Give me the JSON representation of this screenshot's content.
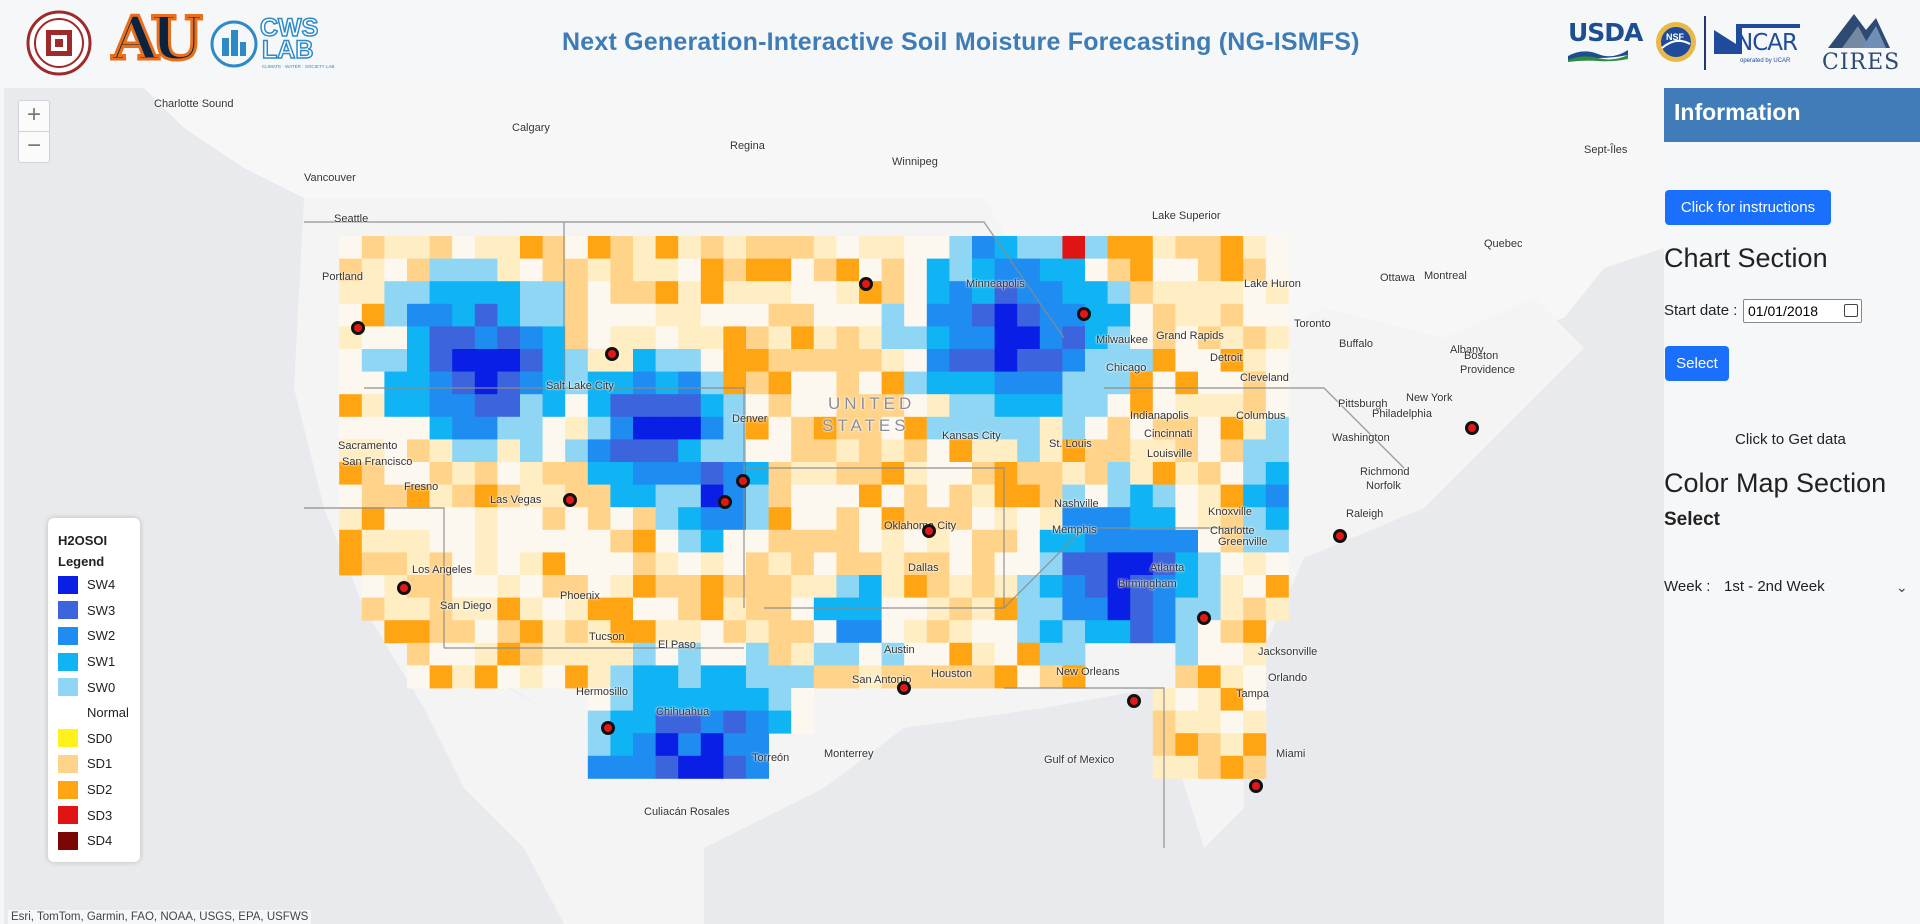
{
  "header": {
    "title": "Next Generation-Interactive Soil Moisture Forecasting (NG-ISMFS)",
    "logos": {
      "cwslab_top": "CWS",
      "cwslab_bottom": "LAB",
      "cwslab_tag": "CLIMATE · WATER · SOCIETY LAB",
      "au": "AU",
      "usda": "USDA",
      "nsf": "NSF",
      "ncar": "NCAR",
      "ncar_tag": "operated by UCAR",
      "cires": "CIRES"
    }
  },
  "map": {
    "zoom_in": "+",
    "zoom_out": "−",
    "attribution": "Esri, TomTom, Garmin, FAO, NOAA, USGS, EPA, USFWS",
    "labels": [
      "Charlotte Sound",
      "Calgary",
      "Regina",
      "Winnipeg",
      "Vancouver",
      "Sept-Îles",
      "Seattle",
      "Portland",
      "Quebec",
      "Montreal",
      "Ottawa",
      "Toronto",
      "Buffalo",
      "Albany",
      "Boston",
      "Providence",
      "Lake Superior",
      "Lake Huron",
      "Minneapolis",
      "Milwaukee",
      "Grand Rapids",
      "Detroit",
      "Chicago",
      "Cleveland",
      "Pittsburgh",
      "New York",
      "Philadelphia",
      "Washington",
      "Columbus",
      "Indianapolis",
      "Cincinnati",
      "Louisville",
      "St. Louis",
      "Kansas City",
      "Richmond",
      "Norfolk",
      "Nashville",
      "Knoxville",
      "Charlotte",
      "Greenville",
      "Raleigh",
      "Memphis",
      "Atlanta",
      "Birmingham",
      "Salt Lake City",
      "Denver",
      "UNITED",
      "STATES",
      "Sacramento",
      "San Francisco",
      "Fresno",
      "Las Vegas",
      "Oklahoma City",
      "Dallas",
      "Los Angeles",
      "Phoenix",
      "San Diego",
      "Tucson",
      "El Paso",
      "Austin",
      "Houston",
      "San Antonio",
      "New Orleans",
      "Jacksonville",
      "Orlando",
      "Tampa",
      "Miami",
      "Hermosillo",
      "Chihuahua",
      "Torreón",
      "Monterrey",
      "Culiacán Rosales",
      "Gulf of Mexico"
    ]
  },
  "legend": {
    "title": "H2OSOI",
    "subtitle": "Legend",
    "items": [
      {
        "label": "SW4",
        "color": "#0a1fe6"
      },
      {
        "label": "SW3",
        "color": "#3c64dc"
      },
      {
        "label": "SW2",
        "color": "#1e8cf0"
      },
      {
        "label": "SW1",
        "color": "#10b4f4"
      },
      {
        "label": "SW0",
        "color": "#8ed6f4"
      },
      {
        "label": "Normal",
        "color": "#ffffff"
      },
      {
        "label": "SD0",
        "color": "#fff21c"
      },
      {
        "label": "SD1",
        "color": "#ffd38a"
      },
      {
        "label": "SD2",
        "color": "#ffa514"
      },
      {
        "label": "SD3",
        "color": "#e01414"
      },
      {
        "label": "SD4",
        "color": "#7a0606"
      }
    ]
  },
  "panel": {
    "header": "Information",
    "instructions_button": "Click for instructions",
    "chart_section_title": "Chart Section",
    "start_date_label": "Start date :",
    "start_date_value": "01/01/2018",
    "select_button": "Select",
    "get_data_text": "Click to Get data",
    "color_map_title": "Color Map Section",
    "color_map_select_label": "Select",
    "week_label": "Week :",
    "week_value": "1st - 2nd Week"
  }
}
